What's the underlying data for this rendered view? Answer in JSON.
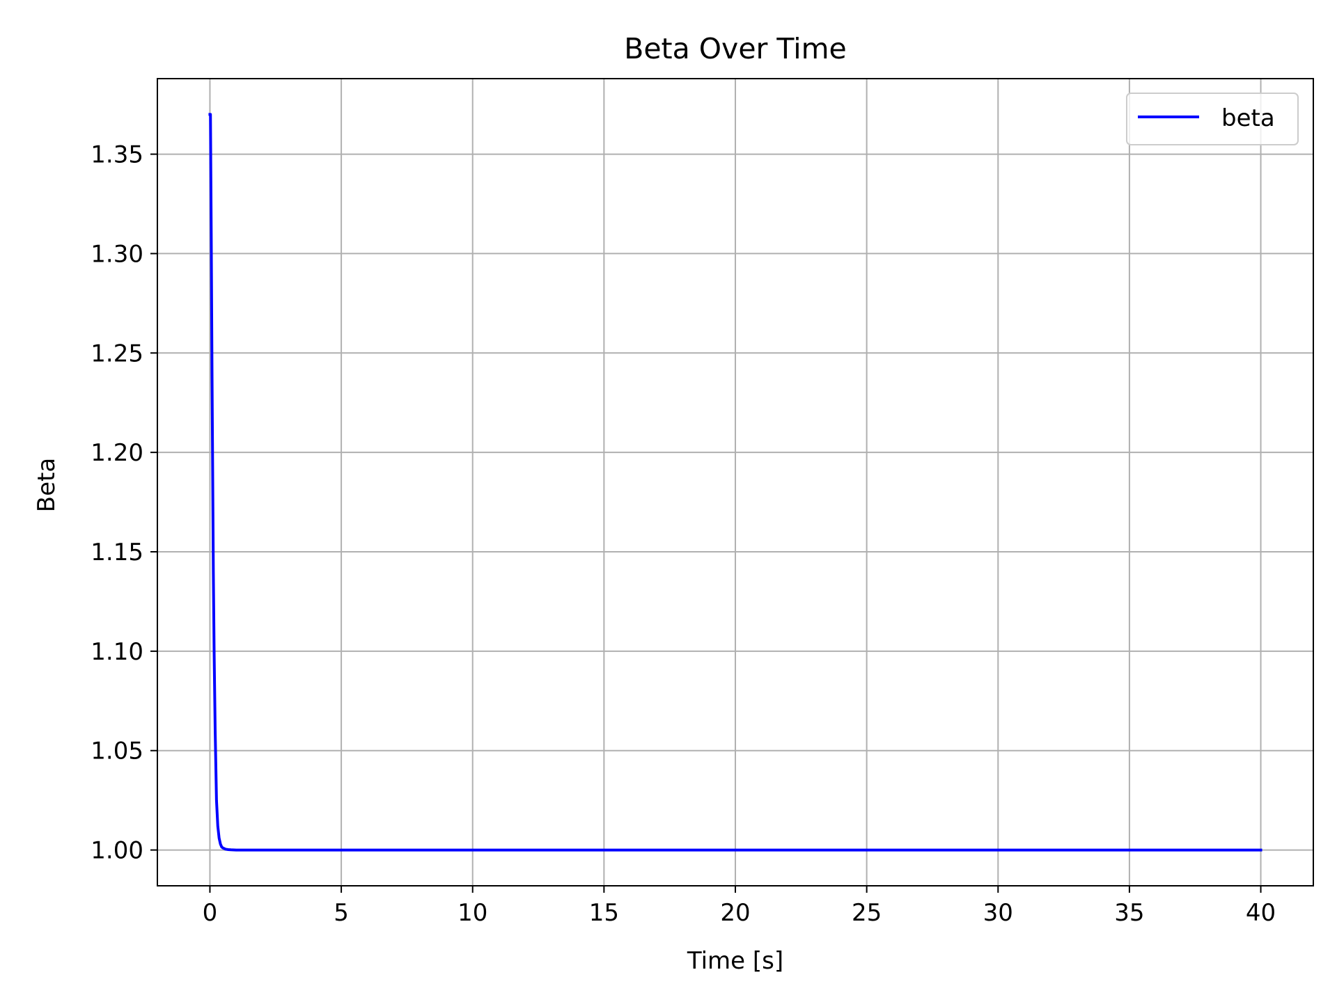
{
  "chart_data": {
    "type": "line",
    "title": "Beta Over Time",
    "xlabel": "Time [s]",
    "ylabel": "Beta",
    "xlim": [
      -2,
      42
    ],
    "ylim": [
      0.982,
      1.388
    ],
    "xticks": [
      0,
      5,
      10,
      15,
      20,
      25,
      30,
      35,
      40
    ],
    "xtick_labels": [
      "0",
      "5",
      "10",
      "15",
      "20",
      "25",
      "30",
      "35",
      "40"
    ],
    "yticks": [
      1.0,
      1.05,
      1.1,
      1.15,
      1.2,
      1.25,
      1.3,
      1.35
    ],
    "ytick_labels": [
      "1.00",
      "1.05",
      "1.10",
      "1.15",
      "1.20",
      "1.25",
      "1.30",
      "1.35"
    ],
    "grid": true,
    "legend_position": "top-right",
    "series": [
      {
        "name": "beta",
        "color": "#0000ff",
        "x": [
          0,
          0.02,
          0.05,
          0.08,
          0.1,
          0.13,
          0.16,
          0.2,
          0.25,
          0.3,
          0.35,
          0.4,
          0.45,
          0.5,
          0.6,
          0.7,
          0.8,
          1.0,
          1.5,
          2,
          5,
          10,
          15,
          20,
          25,
          30,
          35,
          40
        ],
        "y": [
          1.37,
          1.37,
          1.31,
          1.24,
          1.2,
          1.14,
          1.1,
          1.06,
          1.025,
          1.012,
          1.006,
          1.003,
          1.0015,
          1.001,
          1.0004,
          1.0002,
          1.0001,
          1.0,
          1.0,
          1.0,
          1.0,
          1.0,
          1.0,
          1.0,
          1.0,
          1.0,
          1.0,
          1.0
        ]
      }
    ]
  }
}
